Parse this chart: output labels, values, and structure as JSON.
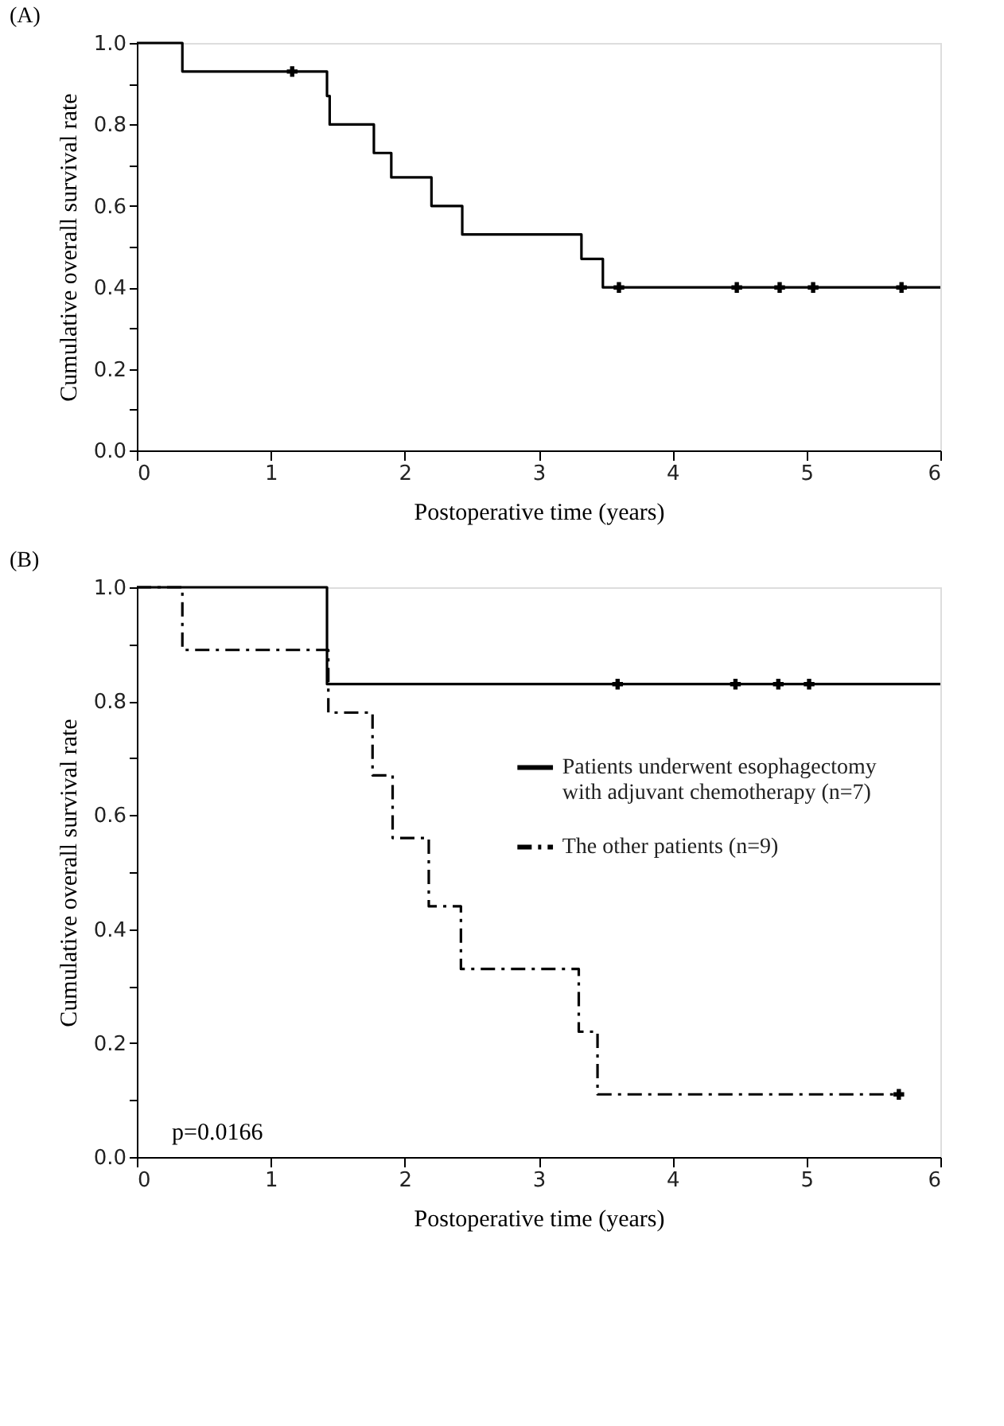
{
  "chart_data": [
    {
      "type": "step",
      "title": "(A)",
      "xlabel": "Postoperative time (years)",
      "ylabel": "Cumulative overall survival rate",
      "xlim": [
        0,
        6
      ],
      "xticks": [
        0,
        1,
        2,
        3,
        4,
        5,
        6
      ],
      "ylim": [
        0,
        1
      ],
      "yticks": [
        {
          "value": 0,
          "label": "0.0"
        },
        {
          "value": 0.1,
          "label": null
        },
        {
          "value": 0.2,
          "label": "0.2"
        },
        {
          "value": 0.3,
          "label": null
        },
        {
          "value": 0.4,
          "label": "0.4"
        },
        {
          "value": 0.5,
          "label": null
        },
        {
          "value": 0.6,
          "label": "0.6"
        },
        {
          "value": 0.7,
          "label": null
        },
        {
          "value": 0.8,
          "label": "0.8"
        },
        {
          "value": 0.9,
          "label": null
        },
        {
          "value": 1,
          "label": "1.0"
        }
      ],
      "grid": false,
      "line_style": "solid",
      "series": [
        {
          "color": "#000000",
          "x": [
            0,
            0.34,
            1.42,
            1.44,
            1.77,
            1.9,
            2.2,
            2.43,
            3.32,
            3.48,
            6
          ],
          "values": [
            1,
            0.93,
            0.87,
            0.8,
            0.73,
            0.67,
            0.6,
            0.53,
            0.47,
            0.4,
            0.4
          ]
        },
        {
          "type": "scatter",
          "marker": "cross",
          "color": "#000000",
          "x": [
            1.16,
            3.6,
            4.48,
            4.8,
            5.05,
            5.71
          ],
          "values": [
            0.93,
            0.4,
            0.4,
            0.4,
            0.4,
            0.4
          ]
        }
      ]
    },
    {
      "type": "step",
      "title": "(B)",
      "xlabel": "Postoperative time (years)",
      "ylabel": "Cumulative overall survival rate",
      "xlim": [
        0,
        6
      ],
      "xticks": [
        0,
        1,
        2,
        3,
        4,
        5,
        6
      ],
      "ylim": [
        0,
        1
      ],
      "yticks": [
        {
          "value": 0,
          "label": "0.0"
        },
        {
          "value": 0.1,
          "label": null
        },
        {
          "value": 0.2,
          "label": "0.2"
        },
        {
          "value": 0.3,
          "label": null
        },
        {
          "value": 0.4,
          "label": "0.4"
        },
        {
          "value": 0.5,
          "label": null
        },
        {
          "value": 0.6,
          "label": "0.6"
        },
        {
          "value": 0.7,
          "label": null
        },
        {
          "value": 0.8,
          "label": "0.8"
        },
        {
          "value": 0.9,
          "label": null
        },
        {
          "value": 1,
          "label": "1.0"
        }
      ],
      "grid": false,
      "legend": "right",
      "annotations": [
        "p=0.0166"
      ],
      "series": [
        {
          "name": "Patients underwent esophagectomy with adjuvant chemotherapy (n=7)",
          "color": "#000000",
          "line_style": "solid",
          "x": [
            0,
            1.42,
            6
          ],
          "values": [
            1,
            0.83,
            0.83
          ]
        },
        {
          "name": "The other patients (n=9)",
          "color": "#000000",
          "line_style": "dashdot",
          "x": [
            0,
            0.34,
            1.43,
            1.76,
            1.91,
            2.18,
            2.42,
            3.3,
            3.44,
            5.69
          ],
          "values": [
            1,
            0.89,
            0.78,
            0.67,
            0.56,
            0.44,
            0.33,
            0.22,
            0.11,
            0.11
          ]
        },
        {
          "type": "scatter",
          "marker": "cross",
          "color": "#000000",
          "x": [
            3.59,
            4.47,
            4.79,
            5.02,
            5.69
          ],
          "values": [
            0.83,
            0.83,
            0.83,
            0.83,
            0.11
          ]
        }
      ]
    }
  ]
}
